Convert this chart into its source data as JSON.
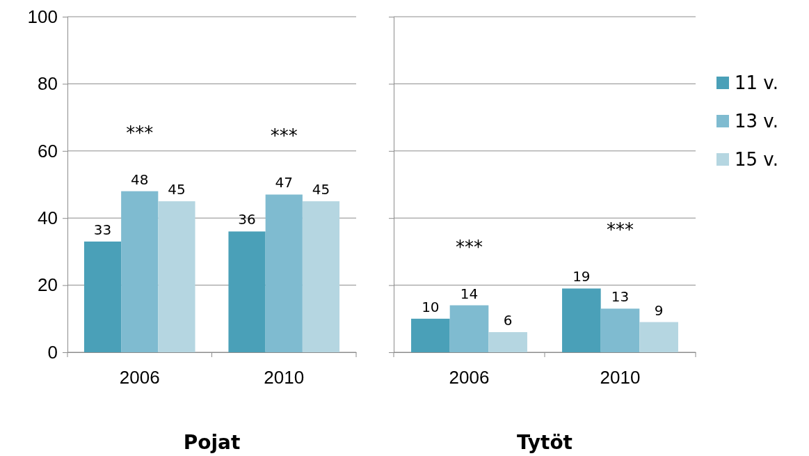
{
  "chart_data": [
    {
      "type": "bar",
      "xlabel": "Pojat",
      "categories": [
        "2006",
        "2010"
      ],
      "series": [
        {
          "color": "#4aa0b8",
          "values": [
            33,
            36
          ]
        },
        {
          "color": "#7fbbd0",
          "values": [
            48,
            47
          ]
        },
        {
          "color": "#b5d6e1",
          "values": [
            45,
            45
          ]
        }
      ],
      "ylim": [
        0,
        100
      ],
      "yticks": [
        0,
        20,
        40,
        60,
        80,
        100
      ],
      "grid": "y",
      "data_labels": true,
      "legend": false,
      "annotations": [
        "***",
        "***"
      ]
    },
    {
      "type": "bar",
      "xlabel": "Tytöt",
      "categories": [
        "2006",
        "2010"
      ],
      "series": [
        {
          "name": "11 v.",
          "color": "#4aa0b8",
          "values": [
            10,
            19
          ]
        },
        {
          "name": "13 v.",
          "color": "#7fbbd0",
          "values": [
            14,
            13
          ]
        },
        {
          "name": "15 v.",
          "color": "#b5d6e1",
          "values": [
            6,
            9
          ]
        }
      ],
      "ylim": [
        0,
        100
      ],
      "yticks": [
        0,
        20,
        40,
        60,
        80,
        100
      ],
      "grid": "y",
      "data_labels": true,
      "legend": "right",
      "tick_labels": "x",
      "annotations": [
        "***",
        "***"
      ]
    }
  ]
}
